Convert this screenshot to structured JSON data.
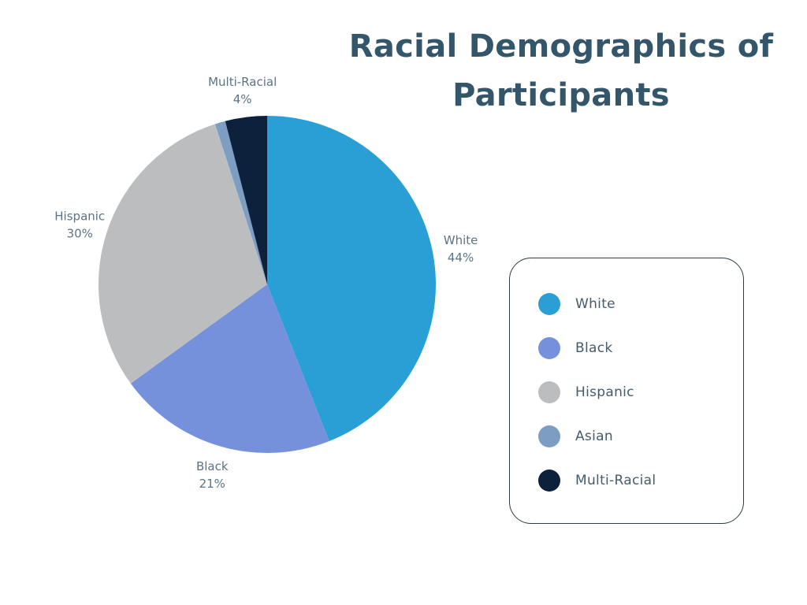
{
  "chart_data": {
    "type": "pie",
    "title": "Racial Demographics of Participants",
    "slices": [
      {
        "label": "White",
        "value": 44,
        "value_label": "44%",
        "color": "#2a9fd6"
      },
      {
        "label": "Black",
        "value": 21,
        "value_label": "21%",
        "color": "#7591dc"
      },
      {
        "label": "Hispanic",
        "value": 30,
        "value_label": "30%",
        "color": "#bcbdbf"
      },
      {
        "label": "Asian",
        "value": 1,
        "value_label": "",
        "color": "#7d9ec2"
      },
      {
        "label": "Multi-Racial",
        "value": 4,
        "value_label": "4%",
        "color": "#0d213d"
      }
    ],
    "legend": {
      "position": "right",
      "entries": [
        "White",
        "Black",
        "Hispanic",
        "Asian",
        "Multi-Racial"
      ]
    }
  }
}
